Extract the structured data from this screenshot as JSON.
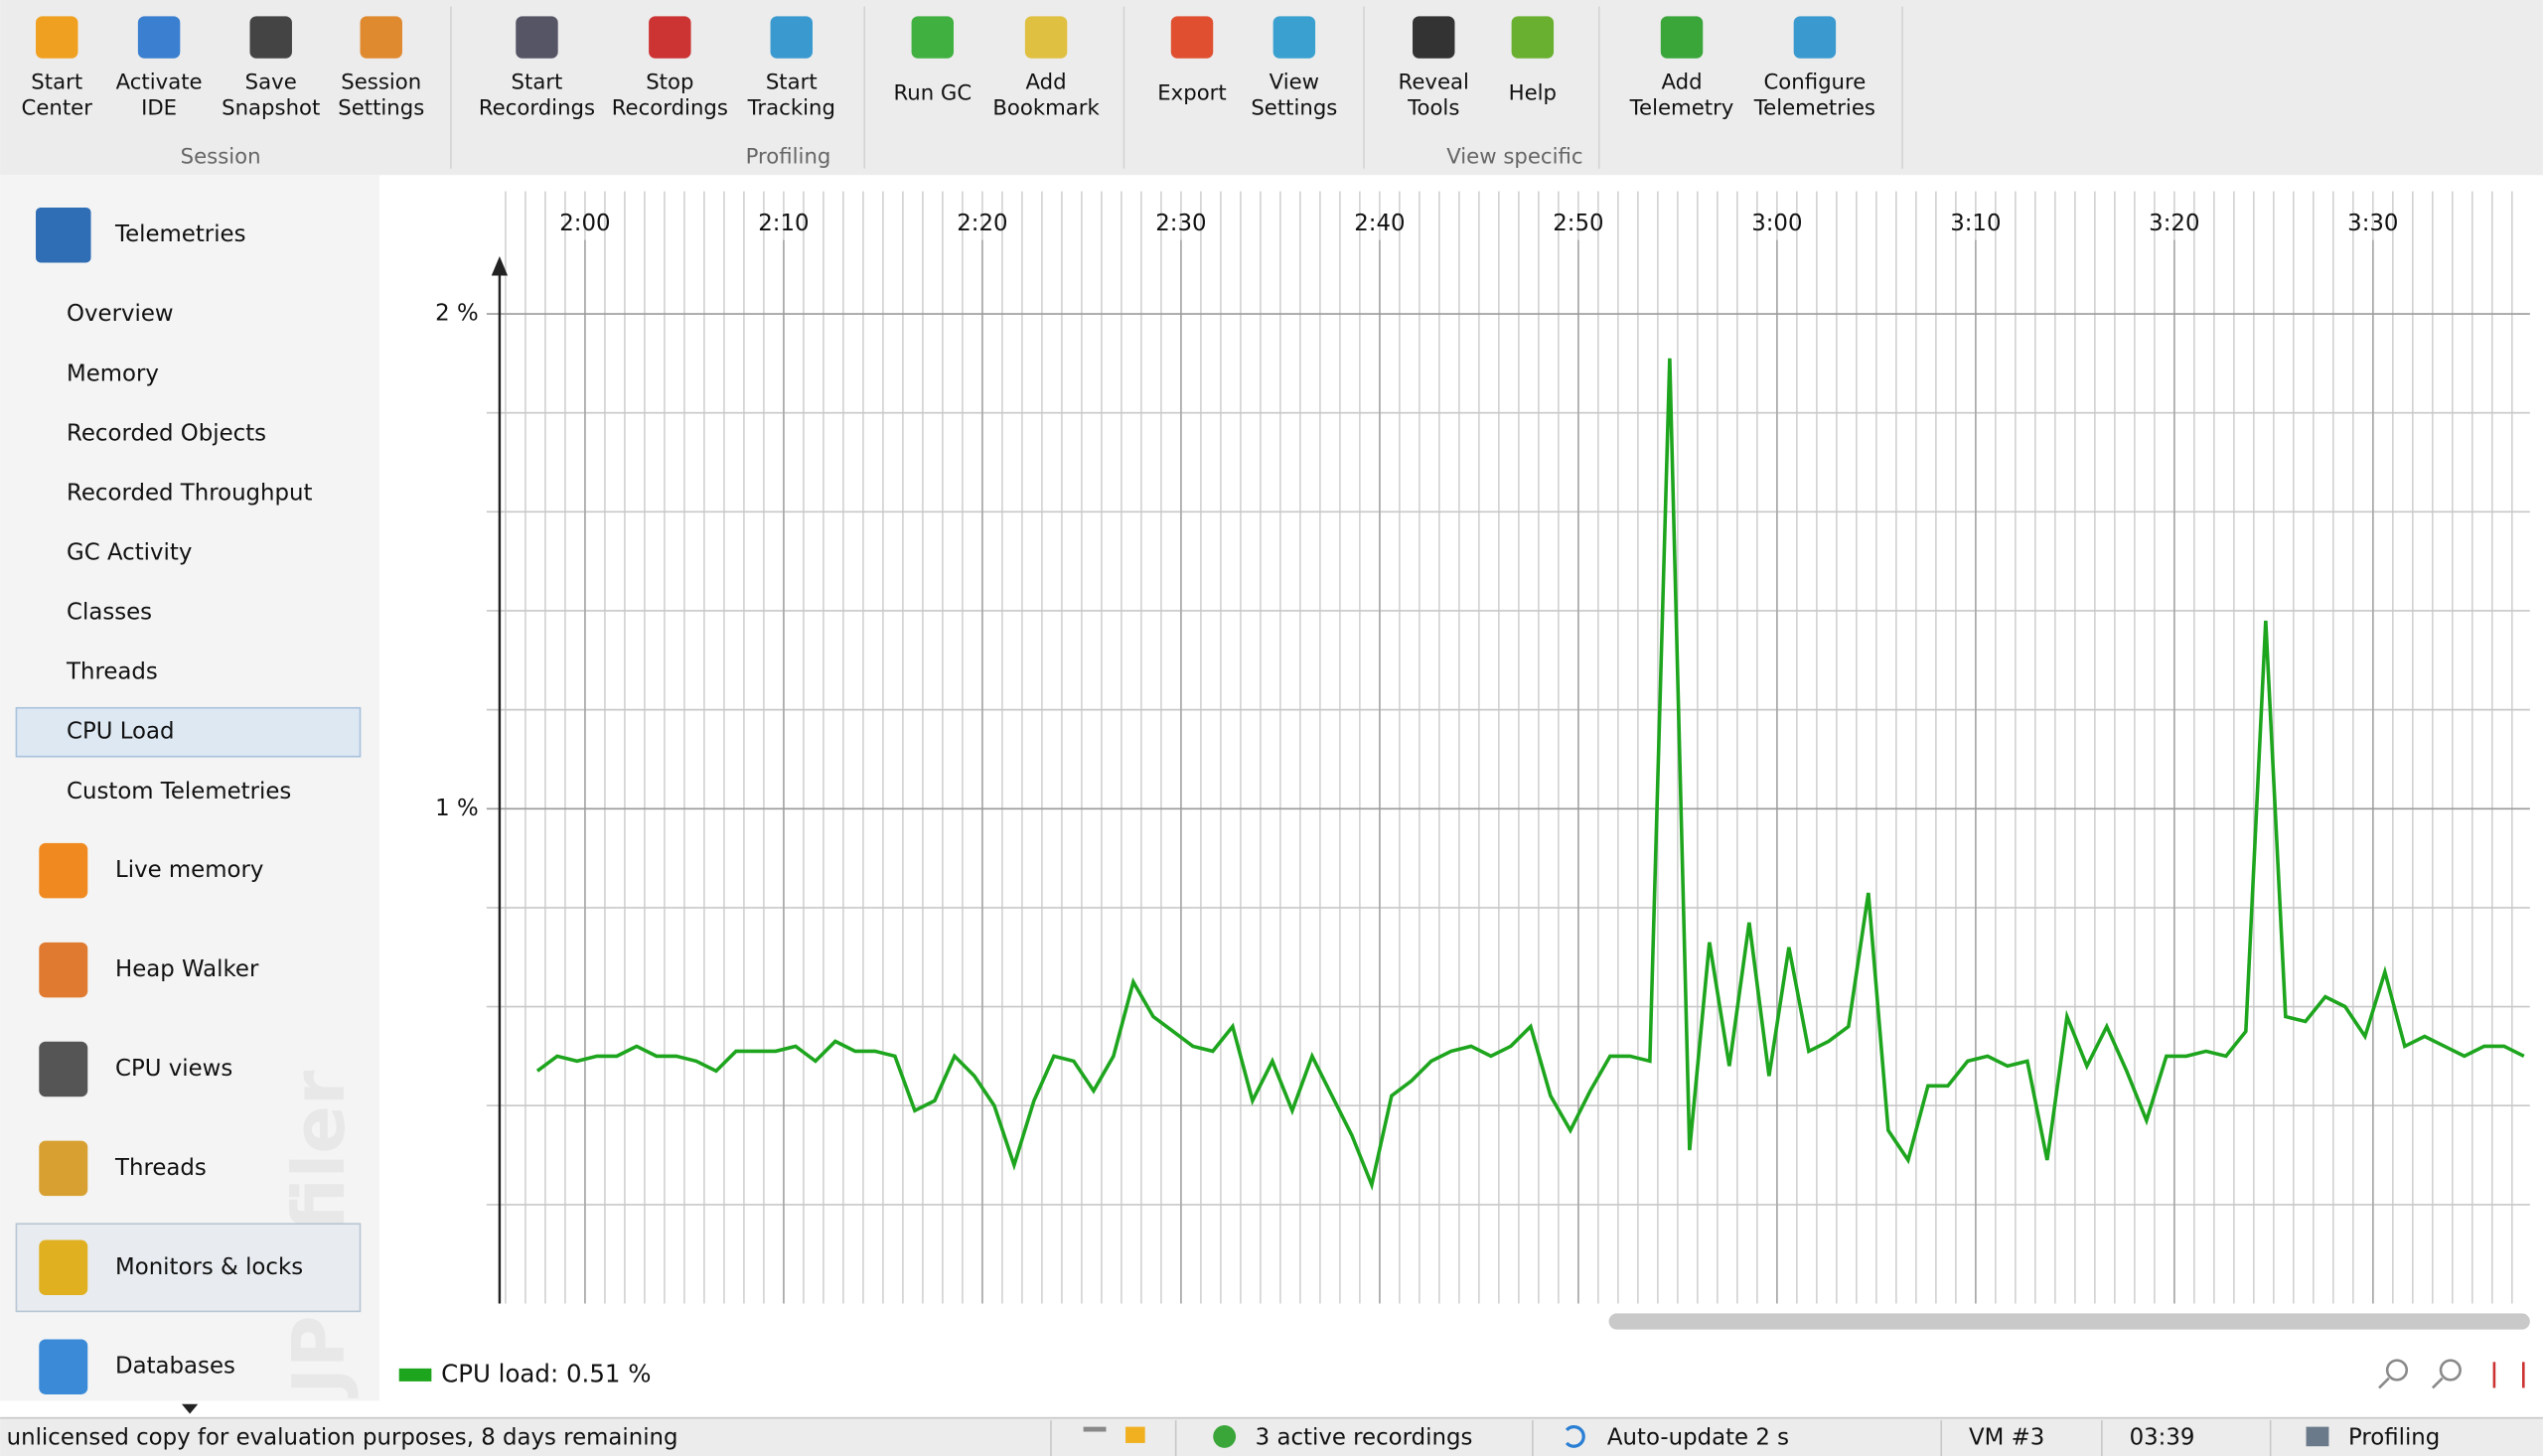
{
  "toolbar": {
    "groups": [
      {
        "label": "Session",
        "buttons": [
          {
            "lines": [
              "Start",
              "Center"
            ]
          },
          {
            "lines": [
              "Activate",
              "IDE"
            ]
          },
          {
            "lines": [
              "Save",
              "Snapshot"
            ]
          },
          {
            "lines": [
              "Session",
              "Settings"
            ]
          }
        ]
      },
      {
        "label": "Profiling",
        "buttons": [
          {
            "lines": [
              "Start",
              "Recordings"
            ]
          },
          {
            "lines": [
              "Stop",
              "Recordings"
            ]
          },
          {
            "lines": [
              "Start",
              "Tracking"
            ]
          },
          {
            "lines": [
              "Run GC"
            ]
          },
          {
            "lines": [
              "Add",
              "Bookmark"
            ]
          }
        ]
      },
      {
        "label": "View specific",
        "buttons": [
          {
            "lines": [
              "Export"
            ]
          },
          {
            "lines": [
              "View",
              "Settings"
            ]
          },
          {
            "lines": [
              "Reveal",
              "Tools"
            ]
          },
          {
            "lines": [
              "Help"
            ]
          },
          {
            "lines": [
              "Add",
              "Telemetry"
            ]
          },
          {
            "lines": [
              "Configure",
              "Telemetries"
            ]
          }
        ]
      }
    ]
  },
  "sidebar": {
    "header": "Telemetries",
    "items": [
      "Overview",
      "Memory",
      "Recorded Objects",
      "Recorded Throughput",
      "GC Activity",
      "Classes",
      "Threads",
      "CPU Load",
      "Custom Telemetries"
    ],
    "selected": 7,
    "sections": [
      "Live memory",
      "Heap Walker",
      "CPU views",
      "Threads",
      "Monitors & locks",
      "Databases"
    ],
    "watermark": "JProfiler"
  },
  "chart_data": {
    "type": "line",
    "x": [
      117.6,
      118.6,
      119.6,
      120.6,
      121.6,
      122.6,
      123.6,
      124.6,
      125.6,
      126.6,
      127.6,
      128.6,
      129.6,
      130.6,
      131.6,
      132.6,
      133.6,
      134.6,
      135.6,
      136.6,
      137.6,
      138.6,
      139.6,
      140.6,
      141.6,
      142.6,
      143.6,
      144.6,
      145.6,
      146.6,
      147.6,
      148.6,
      149.6,
      150.6,
      151.6,
      152.6,
      153.6,
      154.6,
      155.6,
      156.6,
      157.6,
      158.6,
      159.6,
      160.6,
      161.6,
      162.6,
      163.6,
      164.6,
      165.6,
      166.6,
      167.6,
      168.6,
      169.6,
      170.6,
      171.6,
      172.6,
      173.6,
      174.6,
      175.6,
      176.6,
      177.6,
      178.6,
      179.6,
      180.6,
      181.6,
      182.6,
      183.6,
      184.6,
      185.6,
      186.6,
      187.6,
      188.6,
      189.6,
      190.6,
      191.6,
      192.6,
      193.6,
      194.6,
      195.6,
      196.6,
      197.6,
      198.6,
      199.6,
      200.6,
      201.6,
      202.6,
      203.6,
      204.6,
      205.6,
      206.6,
      207.6,
      208.6,
      209.6,
      210.6,
      211.6,
      212.6,
      213.6,
      214.6,
      215.6,
      216.6,
      217.6
    ],
    "series": [
      {
        "name": "CPU load: 0.51 %",
        "color": "#1ea51e",
        "values": [
          0.47,
          0.5,
          0.49,
          0.5,
          0.5,
          0.52,
          0.5,
          0.5,
          0.49,
          0.47,
          0.51,
          0.51,
          0.51,
          0.52,
          0.49,
          0.53,
          0.51,
          0.51,
          0.5,
          0.39,
          0.41,
          0.5,
          0.46,
          0.4,
          0.28,
          0.41,
          0.5,
          0.49,
          0.43,
          0.5,
          0.65,
          0.58,
          0.55,
          0.52,
          0.51,
          0.56,
          0.41,
          0.49,
          0.39,
          0.5,
          0.42,
          0.34,
          0.24,
          0.42,
          0.45,
          0.49,
          0.51,
          0.52,
          0.5,
          0.52,
          0.56,
          0.42,
          0.35,
          0.43,
          0.5,
          0.5,
          0.49,
          1.91,
          0.31,
          0.73,
          0.48,
          0.77,
          0.46,
          0.72,
          0.51,
          0.53,
          0.56,
          0.83,
          0.35,
          0.29,
          0.44,
          0.44,
          0.49,
          0.5,
          0.48,
          0.49,
          0.29,
          0.58,
          0.48,
          0.56,
          0.47,
          0.37,
          0.5,
          0.5,
          0.51,
          0.5,
          0.55,
          1.38,
          0.58,
          0.57,
          0.62,
          0.6,
          0.54,
          0.67,
          0.52,
          0.54,
          0.52,
          0.5,
          0.52,
          0.52,
          0.5
        ]
      }
    ],
    "xlim": [
      115.7,
      217.9
    ],
    "xticks": [
      {
        "value": 120,
        "label": "2:00"
      },
      {
        "value": 130,
        "label": "2:10"
      },
      {
        "value": 140,
        "label": "2:20"
      },
      {
        "value": 150,
        "label": "2:30"
      },
      {
        "value": 160,
        "label": "2:40"
      },
      {
        "value": 170,
        "label": "2:50"
      },
      {
        "value": 180,
        "label": "3:00"
      },
      {
        "value": 190,
        "label": "3:10"
      },
      {
        "value": 200,
        "label": "3:20"
      },
      {
        "value": 210,
        "label": "3:30"
      }
    ],
    "x_minor_step": 1,
    "ylim": [
      0,
      2.11
    ],
    "yticks": [
      {
        "value": 1,
        "label": "1 %"
      },
      {
        "value": 2,
        "label": "2 %"
      }
    ],
    "y_minor_ticks": [
      0.2,
      0.4,
      0.6,
      0.8,
      1.2,
      1.4,
      1.6,
      1.8
    ],
    "grid": true
  },
  "status_bar": {
    "license": "unlicensed copy for evaluation purposes, 8 days remaining",
    "recordings": "3 active recordings",
    "auto_update": "Auto-update 2 s",
    "vm": "VM #3",
    "time": "03:39",
    "mode": "Profiling"
  }
}
